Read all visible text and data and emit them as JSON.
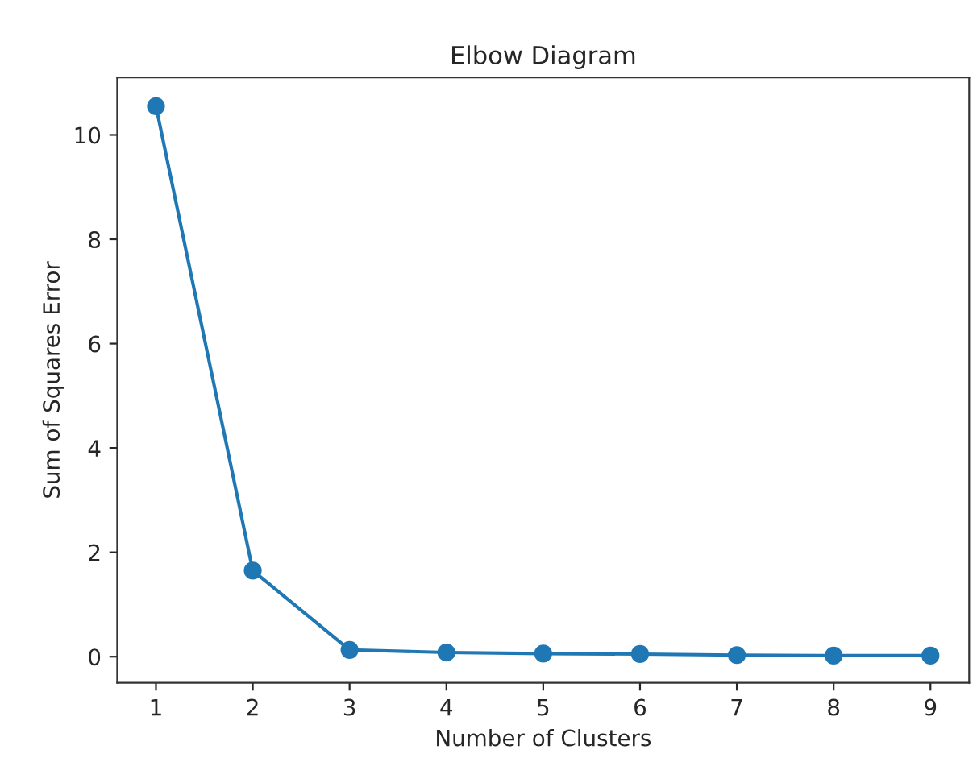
{
  "chart_data": {
    "type": "line",
    "title": "Elbow Diagram",
    "xlabel": "Number of Clusters",
    "ylabel": "Sum of Squares Error",
    "x": [
      1,
      2,
      3,
      4,
      5,
      6,
      7,
      8,
      9
    ],
    "series": [
      {
        "color": "#1f77b4",
        "values": [
          10.55,
          1.65,
          0.13,
          0.08,
          0.06,
          0.05,
          0.03,
          0.02,
          0.02
        ]
      }
    ],
    "xlim": [
      0.6,
      9.4
    ],
    "xticks": [
      1,
      2,
      3,
      4,
      5,
      6,
      7,
      8,
      9
    ],
    "ylim": [
      -0.5,
      11.1
    ],
    "yticks": [
      0,
      2,
      4,
      6,
      8,
      10
    ],
    "marker": "circle",
    "line_style": "solid",
    "grid": false
  }
}
